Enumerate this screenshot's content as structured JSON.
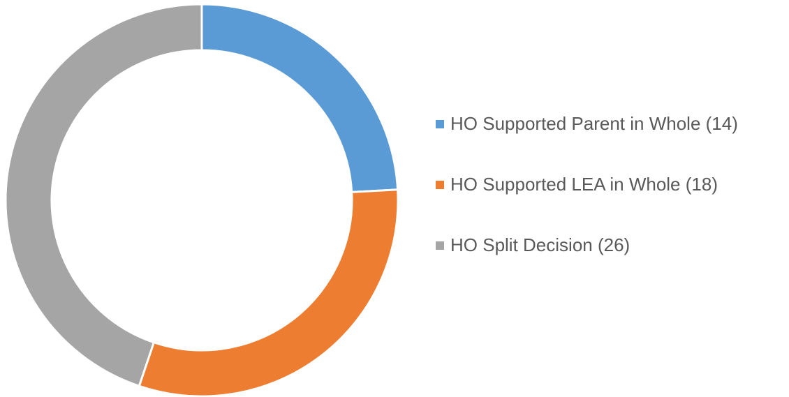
{
  "chart_data": {
    "type": "donut",
    "categories": [
      "HO Supported Parent in Whole (14)",
      "HO Supported LEA in Whole (18)",
      "HO Split Decision (26)"
    ],
    "values": [
      14,
      18,
      26
    ],
    "colors": [
      "#5b9bd5",
      "#ed7d31",
      "#a5a5a5"
    ],
    "legend": "right"
  }
}
